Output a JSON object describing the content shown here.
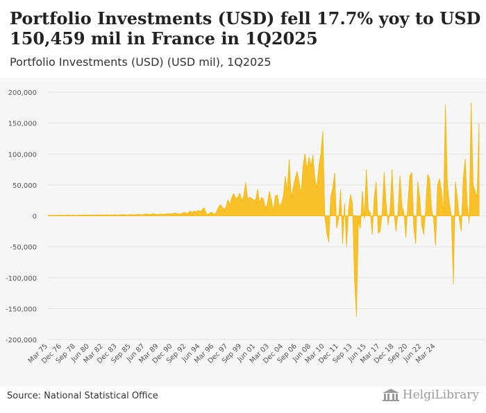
{
  "header": {
    "title": "Portfolio Investments (USD) fell 17.7% yoy to USD 150,459 mil in France in 1Q2025",
    "subtitle": "Portfolio Investments (USD) (USD mil), 1Q2025"
  },
  "footer": {
    "source": "Source: National Statistical Office",
    "logo_text": "HelgiLibrary"
  },
  "colors": {
    "series": "#f5b800",
    "series_fill": "#f8c02a",
    "grid": "#e2e2e2",
    "background": "#f6f6f6"
  },
  "chart_data": {
    "type": "area",
    "title": "Portfolio Investments (USD) (USD mil), 1Q2025",
    "xlabel": "",
    "ylabel": "USD mil",
    "ylim": [
      -200000,
      200000
    ],
    "yticks": [
      200000,
      150000,
      100000,
      50000,
      0,
      -50000,
      -100000,
      -150000,
      -200000
    ],
    "ytick_labels": [
      "200,000",
      "150,000",
      "100,000",
      "50,000",
      "0",
      "-50,000",
      "-100,000",
      "-150,000",
      "-200,000"
    ],
    "xtick_labels": [
      "Mar 75",
      "Dec 76",
      "Sep 78",
      "Jun 80",
      "Mar 82",
      "Dec 83",
      "Sep 85",
      "Jun 87",
      "Mar 89",
      "Dec 90",
      "Sep 92",
      "Jun 94",
      "Mar 96",
      "Dec 97",
      "Sep 99",
      "Jun 01",
      "Mar 03",
      "Dec 04",
      "Sep 06",
      "Jun 08",
      "Mar 10",
      "Dec 11",
      "Sep 13",
      "Jun 15",
      "Mar 17",
      "Dec 18",
      "Sep 20",
      "Jun 22",
      "Mar 24"
    ],
    "x_start": "Mar 75",
    "x_end": "Mar 25",
    "frequency": "quarterly",
    "grid": true,
    "series": [
      {
        "name": "Portfolio Investments (USD)",
        "values": [
          800,
          900,
          700,
          1000,
          900,
          800,
          1100,
          900,
          1000,
          800,
          1200,
          1000,
          900,
          1300,
          1100,
          1000,
          1200,
          1100,
          1400,
          1200,
          1000,
          1500,
          1300,
          1100,
          1400,
          1200,
          1600,
          1300,
          1200,
          1500,
          1800,
          1400,
          1600,
          1300,
          1900,
          1500,
          1400,
          1700,
          2000,
          1600,
          1500,
          1800,
          2200,
          1700,
          1600,
          1900,
          2500,
          1800,
          2000,
          2600,
          3000,
          2200,
          2400,
          3500,
          2800,
          2000,
          2500,
          3000,
          2200,
          2600,
          3000,
          3500,
          2600,
          3800,
          4500,
          3800,
          3200,
          3000,
          4000,
          6000,
          3500,
          5000,
          8000,
          5000,
          8000,
          6000,
          9000,
          7000,
          10000,
          13000,
          4000,
          2000,
          5000,
          6000,
          2000,
          5000,
          12000,
          18000,
          15000,
          10000,
          14000,
          26000,
          18000,
          30000,
          36000,
          28000,
          30000,
          37000,
          25000,
          32000,
          54000,
          27000,
          30000,
          28000,
          26000,
          25000,
          43000,
          22000,
          30000,
          27000,
          12000,
          20000,
          40000,
          25000,
          8000,
          32000,
          34000,
          15000,
          20000,
          30000,
          64000,
          40000,
          91000,
          30000,
          45000,
          60000,
          72000,
          55000,
          35000,
          80000,
          100000,
          75000,
          95000,
          80000,
          98000,
          60000,
          45000,
          80000,
          100000,
          137000,
          0,
          -28000,
          -42000,
          30000,
          45000,
          70000,
          -20000,
          -5000,
          42000,
          -45000,
          20000,
          -50000,
          10000,
          35000,
          20000,
          -100000,
          -163000,
          -10000,
          -20000,
          40000,
          -5000,
          75000,
          10000,
          5000,
          -30000,
          30000,
          55000,
          -28000,
          -25000,
          5000,
          70000,
          20000,
          -15000,
          10000,
          75000,
          5000,
          -25000,
          5000,
          65000,
          15000,
          5000,
          -35000,
          20000,
          65000,
          70000,
          -20000,
          -45000,
          55000,
          30000,
          -15000,
          -30000,
          10000,
          67000,
          60000,
          10000,
          -5000,
          -48000,
          50000,
          60000,
          40000,
          5000,
          180000,
          50000,
          20000,
          0,
          -111000,
          55000,
          30000,
          -5000,
          -25000,
          60000,
          92000,
          20000,
          -12000,
          183000,
          50000,
          40000,
          30000,
          150459
        ]
      }
    ]
  }
}
